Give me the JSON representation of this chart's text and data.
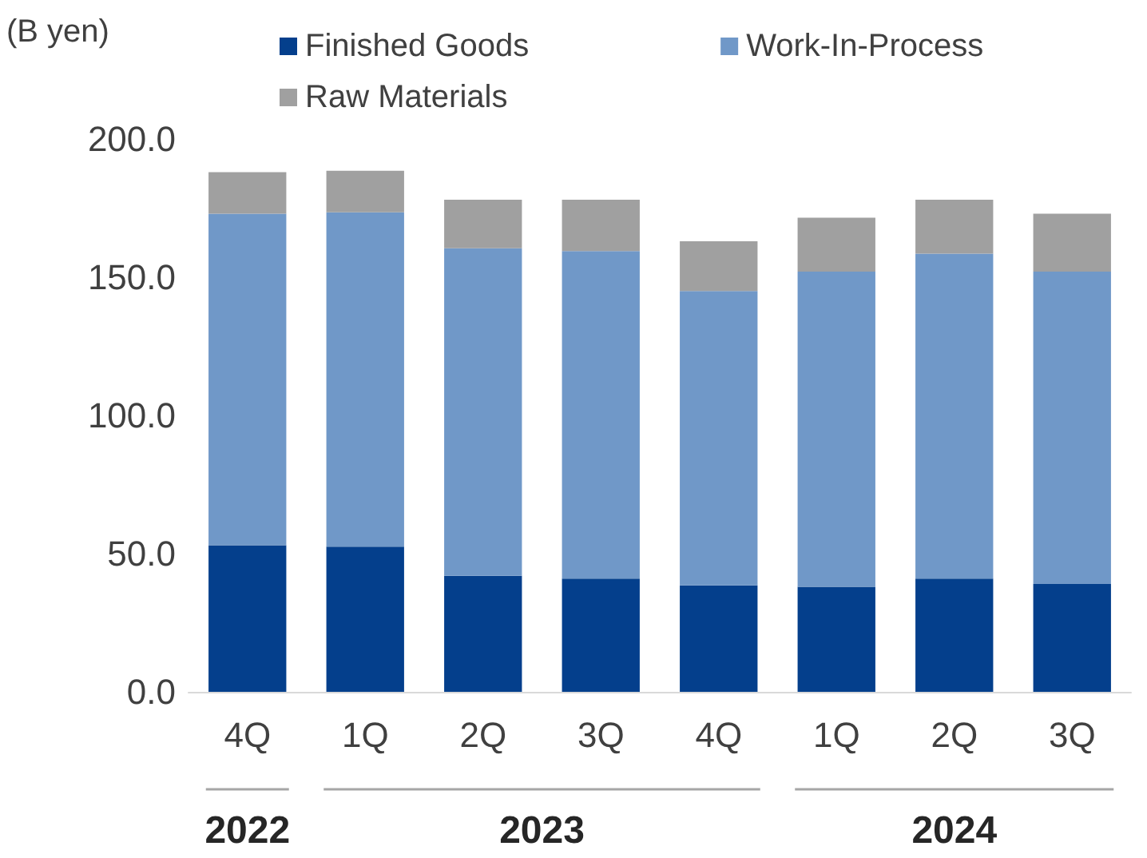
{
  "chart_data": {
    "type": "bar",
    "stacked": true,
    "ylabel": "(B yen)",
    "categories": [
      "4Q",
      "1Q",
      "2Q",
      "3Q",
      "4Q",
      "1Q",
      "2Q",
      "3Q"
    ],
    "series": [
      {
        "name": "Finished Goods",
        "color": "#043f8c",
        "values": [
          53,
          52.5,
          42,
          41,
          38.5,
          38,
          41,
          39
        ]
      },
      {
        "name": "Work-In-Process",
        "color": "#7098c8",
        "values": [
          120,
          121,
          118.5,
          118.5,
          106.5,
          114,
          117.5,
          113
        ]
      },
      {
        "name": "Raw Materials",
        "color": "#a0a0a0",
        "values": [
          15,
          15,
          17.5,
          18.5,
          18,
          19.5,
          19.5,
          21
        ]
      }
    ],
    "ylim": [
      0,
      200
    ],
    "yticks": [
      {
        "value": 0,
        "label": "0.0"
      },
      {
        "value": 50,
        "label": "50.0"
      },
      {
        "value": 100,
        "label": "100.0"
      },
      {
        "value": 150,
        "label": "150.0"
      },
      {
        "value": 200,
        "label": "200.0"
      }
    ],
    "annotations": [
      "2022",
      "2023",
      "2024"
    ],
    "grid": false,
    "legend": "top"
  }
}
